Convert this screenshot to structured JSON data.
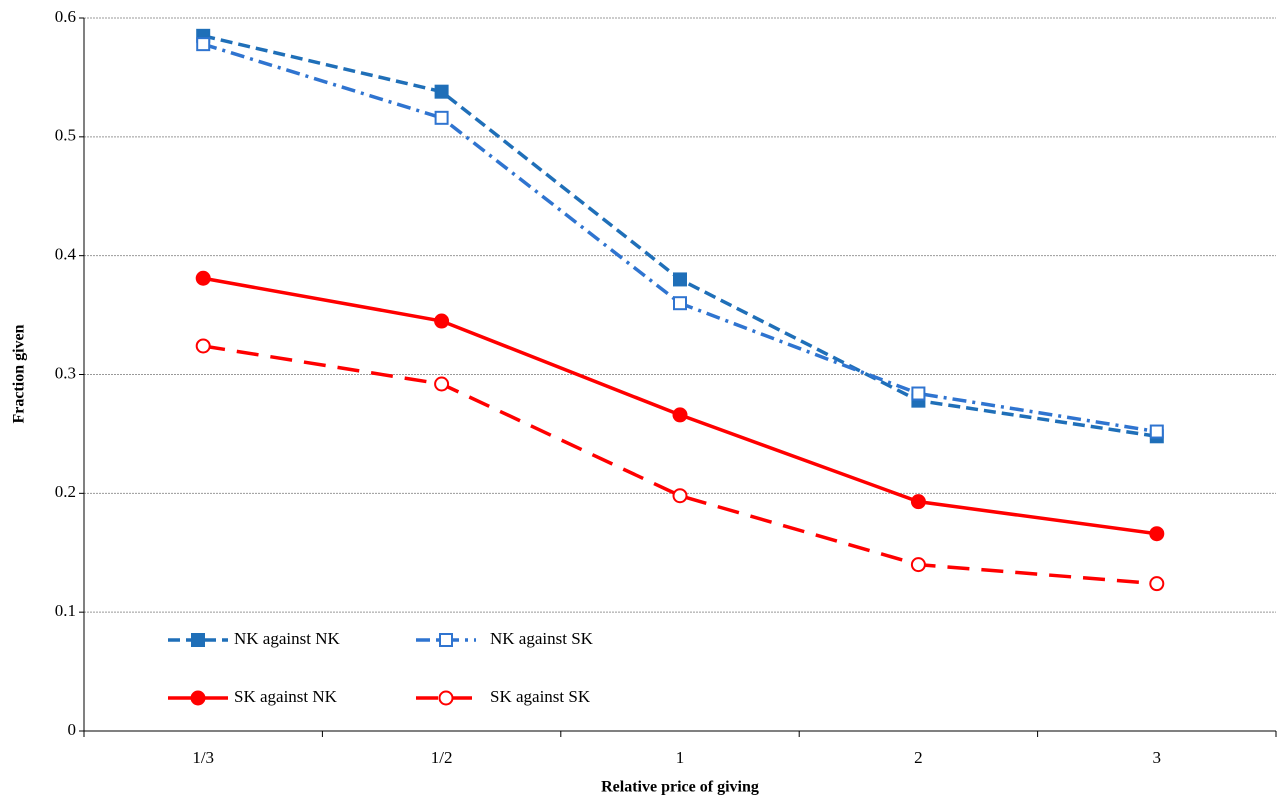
{
  "chart_data": {
    "type": "line",
    "x_label": "Relative price of giving",
    "y_label": "Fraction given",
    "categories": [
      "1/3",
      "1/2",
      "1",
      "2",
      "3"
    ],
    "ylim": [
      0,
      0.6
    ],
    "yticks": [
      0,
      0.1,
      0.2,
      0.3,
      0.4,
      0.5,
      0.6
    ],
    "grid": true,
    "legend": "lower left",
    "series": [
      {
        "name": "NK against NK",
        "color": "#1f6fb8",
        "dash": "dashed",
        "marker": "square",
        "filled": true,
        "values": [
          0.585,
          0.538,
          0.38,
          0.278,
          0.248
        ]
      },
      {
        "name": "NK against SK",
        "color": "#2f74d0",
        "dash": "dashdot",
        "marker": "square",
        "filled": false,
        "values": [
          0.578,
          0.516,
          0.36,
          0.284,
          0.252
        ]
      },
      {
        "name": "SK against NK",
        "color": "#ff0000",
        "dash": "solid",
        "marker": "circle",
        "filled": true,
        "values": [
          0.381,
          0.345,
          0.266,
          0.193,
          0.166
        ]
      },
      {
        "name": "SK against SK",
        "color": "#ff0000",
        "dash": "longdash",
        "marker": "circle",
        "filled": false,
        "values": [
          0.324,
          0.292,
          0.198,
          0.14,
          0.124
        ]
      }
    ]
  }
}
